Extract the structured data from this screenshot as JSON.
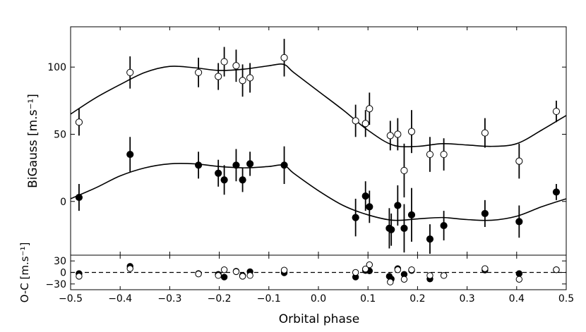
{
  "chart_data": {
    "type": "scatter",
    "xlabel": "Orbital phase",
    "x_ticks": [
      "−0.5",
      "−0.4",
      "−0.3",
      "−0.2",
      "−0.1",
      "0.0",
      "0.1",
      "0.2",
      "0.3",
      "0.4",
      "0.5"
    ],
    "xlim": [
      -0.5,
      0.5
    ],
    "panels": [
      {
        "id": "main",
        "ylabel": "BiGauss [m.s⁻¹]",
        "ylim": [
          -40,
          130
        ],
        "y_ticks": [
          {
            "v": 100,
            "t": "100"
          },
          {
            "v": 50,
            "t": "50"
          },
          {
            "v": 0,
            "t": "0"
          }
        ],
        "series": [
          {
            "marker": "open",
            "points": [
              [
                -0.483,
                59,
                10
              ],
              [
                -0.38,
                96,
                12
              ],
              [
                -0.242,
                96,
                11
              ],
              [
                -0.202,
                93,
                10
              ],
              [
                -0.19,
                104,
                11
              ],
              [
                -0.166,
                101,
                12
              ],
              [
                -0.153,
                90,
                12
              ],
              [
                -0.138,
                92,
                11
              ],
              [
                -0.069,
                107,
                14
              ],
              [
                0.075,
                60,
                12
              ],
              [
                0.095,
                58,
                10
              ],
              [
                0.103,
                69,
                12
              ],
              [
                0.145,
                49,
                11
              ],
              [
                0.16,
                50,
                12
              ],
              [
                0.173,
                23,
                20
              ],
              [
                0.188,
                52,
                16
              ],
              [
                0.225,
                35,
                13
              ],
              [
                0.253,
                35,
                12
              ],
              [
                0.336,
                51,
                11
              ],
              [
                0.405,
                30,
                13
              ],
              [
                0.48,
                67,
                8
              ]
            ],
            "model": [
              [
                -0.5,
                65
              ],
              [
                -0.45,
                77
              ],
              [
                -0.4,
                87
              ],
              [
                -0.35,
                96
              ],
              [
                -0.3,
                100.5
              ],
              [
                -0.25,
                99.5
              ],
              [
                -0.2,
                97.5
              ],
              [
                -0.15,
                98.5
              ],
              [
                -0.1,
                101
              ],
              [
                -0.07,
                102
              ],
              [
                -0.05,
                96
              ],
              [
                0.0,
                82
              ],
              [
                0.05,
                68
              ],
              [
                0.1,
                53
              ],
              [
                0.15,
                42
              ],
              [
                0.2,
                41
              ],
              [
                0.25,
                43
              ],
              [
                0.3,
                42
              ],
              [
                0.35,
                41
              ],
              [
                0.4,
                43
              ],
              [
                0.45,
                53
              ],
              [
                0.5,
                64
              ]
            ]
          },
          {
            "marker": "filled",
            "points": [
              [
                -0.483,
                3,
                10
              ],
              [
                -0.38,
                35,
                13
              ],
              [
                -0.242,
                27,
                10
              ],
              [
                -0.202,
                21,
                10
              ],
              [
                -0.19,
                16,
                11
              ],
              [
                -0.166,
                27,
                12
              ],
              [
                -0.153,
                16,
                9
              ],
              [
                -0.138,
                28,
                9
              ],
              [
                -0.069,
                27,
                14
              ],
              [
                0.075,
                -12,
                14
              ],
              [
                0.095,
                4,
                11
              ],
              [
                0.103,
                -4,
                12
              ],
              [
                0.143,
                -20,
                15
              ],
              [
                0.147,
                -21,
                12
              ],
              [
                0.16,
                -3,
                15
              ],
              [
                0.173,
                -20,
                18
              ],
              [
                0.188,
                -10,
                20
              ],
              [
                0.225,
                -28,
                11
              ],
              [
                0.253,
                -18,
                11
              ],
              [
                0.336,
                -9,
                10
              ],
              [
                0.405,
                -15,
                12
              ],
              [
                0.48,
                7,
                6
              ]
            ],
            "model": [
              [
                -0.5,
                2
              ],
              [
                -0.45,
                10
              ],
              [
                -0.4,
                19
              ],
              [
                -0.35,
                25
              ],
              [
                -0.3,
                28
              ],
              [
                -0.25,
                28
              ],
              [
                -0.2,
                26
              ],
              [
                -0.15,
                25
              ],
              [
                -0.1,
                26
              ],
              [
                -0.07,
                27
              ],
              [
                -0.05,
                21
              ],
              [
                0.0,
                8
              ],
              [
                0.05,
                -3
              ],
              [
                0.1,
                -10
              ],
              [
                0.15,
                -14
              ],
              [
                0.2,
                -13
              ],
              [
                0.25,
                -12
              ],
              [
                0.3,
                -13.5
              ],
              [
                0.35,
                -14
              ],
              [
                0.4,
                -11
              ],
              [
                0.45,
                -4
              ],
              [
                0.5,
                2
              ]
            ]
          }
        ]
      },
      {
        "id": "residuals",
        "ylabel": "O-C [m.s⁻¹]",
        "ylim": [
          -45,
          45
        ],
        "y_ticks": [
          {
            "v": 30,
            "t": "30"
          },
          {
            "v": 0,
            "t": "0"
          },
          {
            "v": -30,
            "t": "−30"
          }
        ],
        "zero_line": "dashed",
        "series": [
          {
            "marker": "filled",
            "points": [
              [
                -0.483,
                -3,
                5
              ],
              [
                -0.38,
                16,
                6
              ],
              [
                -0.242,
                -3,
                5
              ],
              [
                -0.202,
                -5,
                5
              ],
              [
                -0.19,
                -12,
                5
              ],
              [
                -0.166,
                3,
                5
              ],
              [
                -0.153,
                -8,
                5
              ],
              [
                -0.138,
                2,
                5
              ],
              [
                -0.069,
                -1,
                6
              ],
              [
                0.075,
                -12,
                6
              ],
              [
                0.095,
                5,
                6
              ],
              [
                0.103,
                4,
                6
              ],
              [
                0.143,
                -10,
                7
              ],
              [
                0.147,
                -17,
                7
              ],
              [
                0.16,
                10,
                6
              ],
              [
                0.173,
                -5,
                8
              ],
              [
                0.188,
                5,
                8
              ],
              [
                0.225,
                -17,
                6
              ],
              [
                0.253,
                -8,
                6
              ],
              [
                0.336,
                6,
                5
              ],
              [
                0.405,
                -3,
                6
              ],
              [
                0.48,
                7,
                4
              ]
            ]
          },
          {
            "marker": "open",
            "points": [
              [
                -0.483,
                -10,
                5
              ],
              [
                -0.38,
                10,
                6
              ],
              [
                -0.242,
                -4,
                5
              ],
              [
                -0.202,
                -8,
                5
              ],
              [
                -0.19,
                7,
                5
              ],
              [
                -0.166,
                2,
                5
              ],
              [
                -0.153,
                -10,
                5
              ],
              [
                -0.138,
                -8,
                5
              ],
              [
                -0.069,
                6,
                6
              ],
              [
                0.075,
                0,
                6
              ],
              [
                0.095,
                9,
                6
              ],
              [
                0.103,
                20,
                7
              ],
              [
                0.145,
                -25,
                7
              ],
              [
                0.16,
                7,
                6
              ],
              [
                0.173,
                -18,
                8
              ],
              [
                0.188,
                7,
                8
              ],
              [
                0.225,
                -8,
                6
              ],
              [
                0.253,
                -8,
                6
              ],
              [
                0.336,
                10,
                5
              ],
              [
                0.405,
                -18,
                6
              ],
              [
                0.48,
                7,
                4
              ]
            ]
          }
        ]
      }
    ]
  }
}
